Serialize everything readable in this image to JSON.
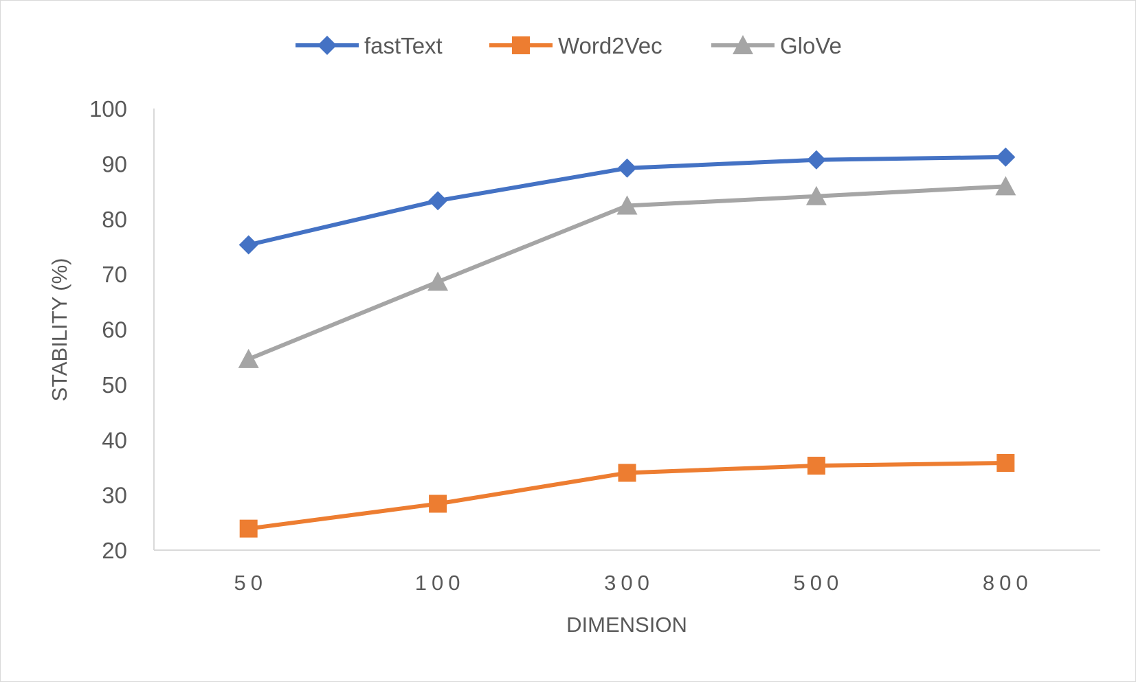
{
  "chart_data": {
    "type": "line",
    "categories": [
      "50",
      "100",
      "300",
      "500",
      "800"
    ],
    "series": [
      {
        "name": "fastText",
        "values": [
          75.3,
          83.3,
          89.2,
          90.7,
          91.2
        ],
        "color": "#4472c4",
        "marker": "diamond"
      },
      {
        "name": "Word2Vec",
        "values": [
          23.9,
          28.4,
          34.0,
          35.3,
          35.8
        ],
        "color": "#ed7d31",
        "marker": "square"
      },
      {
        "name": "GloVe",
        "values": [
          54.6,
          68.6,
          82.4,
          84.1,
          85.9
        ],
        "color": "#a5a5a5",
        "marker": "triangle"
      }
    ],
    "xlabel": "DIMENSION",
    "ylabel": "STABILITY (%)",
    "ylim": [
      20,
      100
    ],
    "yticks": [
      "20",
      "30",
      "40",
      "50",
      "60",
      "70",
      "80",
      "90",
      "100"
    ],
    "grid": false,
    "legend_position": "top"
  }
}
